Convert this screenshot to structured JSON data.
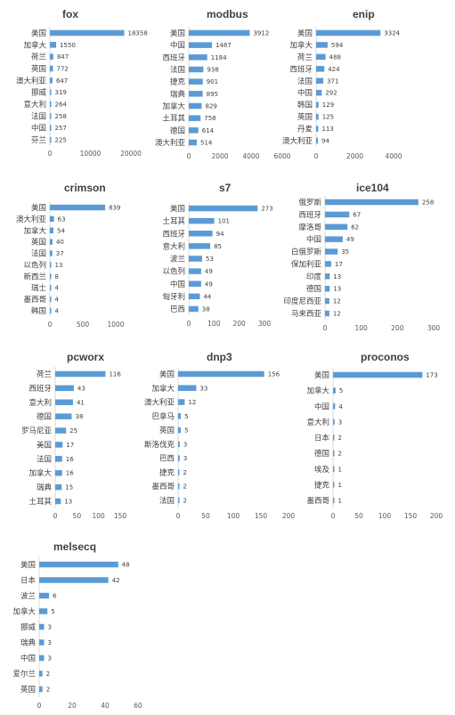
{
  "chart_data": [
    {
      "type": "bar",
      "orientation": "horizontal",
      "title": "fox",
      "categories": [
        "美国",
        "加拿大",
        "荷兰",
        "英国",
        "澳大利亚",
        "挪威",
        "意大利",
        "法国",
        "中国",
        "芬兰"
      ],
      "values": [
        18358,
        1550,
        847,
        772,
        647,
        319,
        264,
        258,
        257,
        225
      ],
      "xticks": [
        "0",
        "10000",
        "20000"
      ],
      "xlim": [
        0,
        20000
      ],
      "grid": false,
      "legend": "none"
    },
    {
      "type": "bar",
      "orientation": "horizontal",
      "title": "modbus",
      "categories": [
        "美国",
        "中国",
        "西班牙",
        "法国",
        "捷克",
        "瑞典",
        "加拿大",
        "土耳其",
        "德国",
        "澳大利亚"
      ],
      "values": [
        3912,
        1487,
        1184,
        938,
        901,
        895,
        829,
        758,
        614,
        514
      ],
      "xticks": [
        "0",
        "2000",
        "4000",
        "6000"
      ],
      "xlim": [
        0,
        6000
      ],
      "grid": false,
      "legend": "none"
    },
    {
      "type": "bar",
      "orientation": "horizontal",
      "title": "enip",
      "categories": [
        "美国",
        "加拿大",
        "荷兰",
        "西班牙",
        "法国",
        "中国",
        "韩国",
        "英国",
        "丹麦",
        "澳大利亚"
      ],
      "values": [
        3324,
        594,
        488,
        424,
        371,
        292,
        129,
        125,
        113,
        94
      ],
      "xticks": [
        "0",
        "2000",
        "4000"
      ],
      "xlim": [
        0,
        4000
      ],
      "grid": false,
      "legend": "none"
    },
    {
      "type": "bar",
      "orientation": "horizontal",
      "title": "crimson",
      "categories": [
        "美国",
        "澳大利亚",
        "加拿大",
        "英国",
        "法国",
        "以色列",
        "新西兰",
        "瑞士",
        "墨西哥",
        "韩国"
      ],
      "values": [
        839,
        63,
        54,
        40,
        37,
        13,
        8,
        4,
        4,
        4
      ],
      "xticks": [
        "0",
        "500",
        "1000"
      ],
      "xlim": [
        0,
        1000
      ],
      "grid": false,
      "legend": "none"
    },
    {
      "type": "bar",
      "orientation": "horizontal",
      "title": "s7",
      "categories": [
        "美国",
        "土耳其",
        "西班牙",
        "意大利",
        "波兰",
        "以色列",
        "中国",
        "匈牙利",
        "巴西"
      ],
      "values": [
        273,
        101,
        94,
        85,
        53,
        49,
        49,
        44,
        38
      ],
      "xticks": [
        "0",
        "100",
        "200",
        "300"
      ],
      "xlim": [
        0,
        300
      ],
      "grid": false,
      "legend": "none"
    },
    {
      "type": "bar",
      "orientation": "horizontal",
      "title": "ice104",
      "categories": [
        "俄罗斯",
        "西班牙",
        "摩洛哥",
        "中国",
        "白俄罗斯",
        "保加利亚",
        "印度",
        "德国",
        "印度尼西亚",
        "马来西亚"
      ],
      "values": [
        258,
        67,
        62,
        49,
        35,
        17,
        13,
        13,
        12,
        12
      ],
      "xticks": [
        "0",
        "100",
        "200",
        "300"
      ],
      "xlim": [
        0,
        300
      ],
      "grid": false,
      "legend": "none"
    },
    {
      "type": "bar",
      "orientation": "horizontal",
      "title": "pcworx",
      "categories": [
        "荷兰",
        "西班牙",
        "意大利",
        "德国",
        "罗马尼亚",
        "美国",
        "法国",
        "加拿大",
        "瑞典",
        "土耳其"
      ],
      "values": [
        116,
        43,
        41,
        38,
        25,
        17,
        16,
        16,
        15,
        13
      ],
      "xticks": [
        "0",
        "50",
        "100",
        "150"
      ],
      "xlim": [
        0,
        150
      ],
      "grid": false,
      "legend": "none"
    },
    {
      "type": "bar",
      "orientation": "horizontal",
      "title": "dnp3",
      "categories": [
        "美国",
        "加拿大",
        "澳大利亚",
        "巴拿马",
        "英国",
        "斯洛伐克",
        "巴西",
        "捷克",
        "墨西哥",
        "法国"
      ],
      "values": [
        156,
        33,
        12,
        5,
        5,
        3,
        3,
        2,
        2,
        2
      ],
      "xticks": [
        "0",
        "50",
        "100",
        "150",
        "200"
      ],
      "xlim": [
        0,
        200
      ],
      "grid": false,
      "legend": "none"
    },
    {
      "type": "bar",
      "orientation": "horizontal",
      "title": "proconos",
      "categories": [
        "美国",
        "加拿大",
        "中国",
        "意大利",
        "日本",
        "德国",
        "埃及",
        "捷克",
        "墨西哥"
      ],
      "values": [
        173,
        5,
        4,
        3,
        2,
        2,
        1,
        1,
        1
      ],
      "xticks": [
        "0",
        "50",
        "100",
        "150",
        "200"
      ],
      "xlim": [
        0,
        200
      ],
      "grid": false,
      "legend": "none"
    },
    {
      "type": "bar",
      "orientation": "horizontal",
      "title": "melsecq",
      "categories": [
        "美国",
        "日本",
        "波兰",
        "加拿大",
        "挪威",
        "瑞典",
        "中国",
        "爱尔兰",
        "英国"
      ],
      "values": [
        48,
        42,
        6,
        5,
        3,
        3,
        3,
        2,
        2
      ],
      "xticks": [
        "0",
        "20",
        "40",
        "60"
      ],
      "xlim": [
        0,
        60
      ],
      "grid": false,
      "legend": "none"
    }
  ],
  "colors": {
    "bar": "#5b9bd5",
    "axis": "#d9d9d9",
    "text": "#404040"
  }
}
